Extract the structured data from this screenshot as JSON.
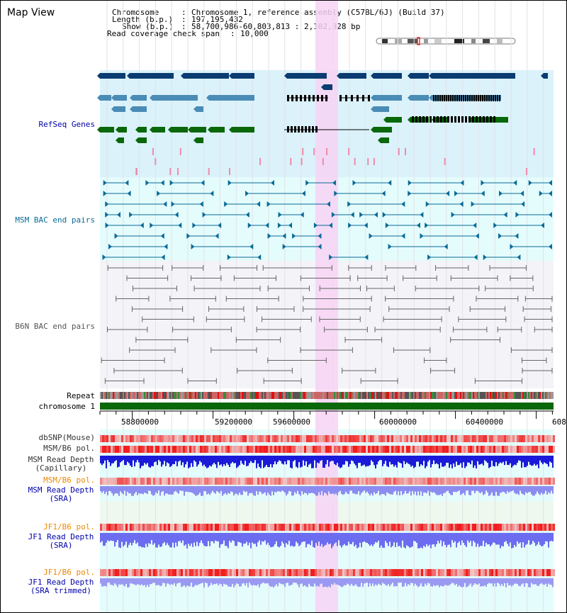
{
  "title": "Map View",
  "info": {
    "chromosome_label": "Chromosome   ",
    "chromosome_value": "Chromosome 1, reference assembly (C57BL/6J) (Build 37)",
    "length_label": "Length (b.p.)",
    "length_value": "197,195,432",
    "show_label": "Show (b.p.)",
    "show_value": "58,700,986-60,803,813 : 2,102,828 bp",
    "coverage_label": "Read coverage check span",
    "coverage_value": "10,000"
  },
  "tracks": {
    "refseq": "RefSeq Genes",
    "msm_bac": "MSM BAC end pairs",
    "b6n_bac": "B6N BAC end pairs",
    "repeat": "Repeat",
    "chromosome": "chromosome 1",
    "dbsnp": "dbSNP(Mouse)",
    "msm_b6_pol_1": "MSM/B6 pol.",
    "msm_read_depth_cap_1": "MSM Read Depth",
    "msm_read_depth_cap_2": "(Capillary)",
    "msm_b6_pol_2": "MSM/B6 pol.",
    "msm_read_depth_sra_1": "MSM Read Depth",
    "msm_read_depth_sra_2": "(SRA)",
    "jf1_b6_pol_1": "JF1/B6 pol.",
    "jf1_read_depth_sra_1": "JF1 Read Depth",
    "jf1_read_depth_sra_2": "(SRA)",
    "jf1_b6_pol_2": "JF1/B6 pol.",
    "jf1_read_depth_trim_1": "JF1 Read Depth",
    "jf1_read_depth_trim_2": "(SRA trimmed)"
  },
  "axis": {
    "ticks": [
      "58800000",
      "59200000",
      "59600000",
      "60000000",
      "60400000",
      "608"
    ]
  },
  "colors": {
    "refseq_bg": "#dbf2fb",
    "msm_bg": "#e4fcfc",
    "b6n_bg": "#f3f3f8",
    "highlight": "#f7d4f4",
    "dark_gene": "#0a3c72",
    "mid_gene": "#4a8cb6",
    "green_gene": "#0a680a",
    "msm_color": "#0a6a98",
    "b6n_color": "#666666",
    "label_blue": "#0000aa",
    "label_orange": "#ee8800",
    "label_grey": "#333333"
  }
}
